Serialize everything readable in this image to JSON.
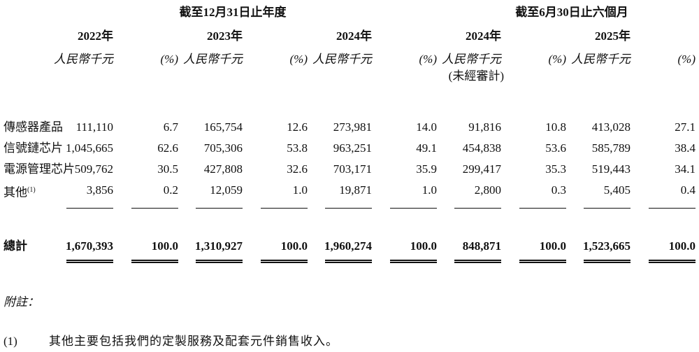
{
  "header": {
    "group_annual": "截至12月31日止年度",
    "group_interim": "截至6月30日止六個月",
    "years": [
      "2022年",
      "2023年",
      "2024年",
      "2024年",
      "2025年"
    ],
    "unit_amount": "人民幣千元",
    "unit_percent": "(%)",
    "unaudited": "(未經審計)"
  },
  "rows": [
    {
      "label": "傳感器產品",
      "values": [
        "111,110",
        "6.7",
        "165,754",
        "12.6",
        "273,981",
        "14.0",
        "91,816",
        "10.8",
        "413,028",
        "27.1"
      ]
    },
    {
      "label": "信號鏈芯片",
      "values": [
        "1,045,665",
        "62.6",
        "705,306",
        "53.8",
        "963,251",
        "49.1",
        "454,838",
        "53.6",
        "585,789",
        "38.4"
      ]
    },
    {
      "label": "電源管理芯片",
      "values": [
        "509,762",
        "30.5",
        "427,808",
        "32.6",
        "703,171",
        "35.9",
        "299,417",
        "35.3",
        "519,443",
        "34.1"
      ]
    },
    {
      "label": "其他",
      "sup": "(1)",
      "values": [
        "3,856",
        "0.2",
        "12,059",
        "1.0",
        "19,871",
        "1.0",
        "2,800",
        "0.3",
        "5,405",
        "0.4"
      ]
    }
  ],
  "total": {
    "label": "總計",
    "values": [
      "1,670,393",
      "100.0",
      "1,310,927",
      "100.0",
      "1,960,274",
      "100.0",
      "848,871",
      "100.0",
      "1,523,665",
      "100.0"
    ]
  },
  "notes": {
    "heading": "附註：",
    "items": [
      {
        "marker": "(1)",
        "text": "其他主要包括我們的定製服務及配套元件銷售收入。"
      }
    ]
  }
}
